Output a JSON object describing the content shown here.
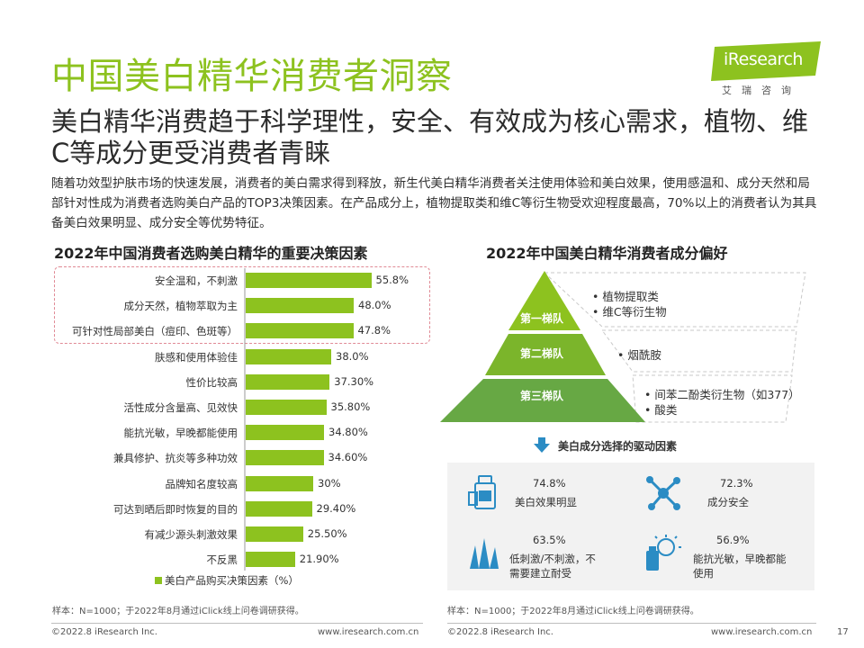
{
  "header": {
    "title": "中国美白精华消费者洞察",
    "subtitle": "美白精华消费趋于科学理性，安全、有效成为核心需求，植物、维C等成分更受消费者青睐",
    "intro": "随着功效型护肤市场的快速发展，消费者的美白需求得到释放，新生代美白精华消费者关注使用体验和美白效果，使用感温和、成分天然和局部针对性成为消费者选购美白产品的TOP3决策因素。在产品成分上，植物提取类和维C等衍生物受欢迎程度最高，70%以上的消费者认为其具备美白效果明显、成分安全等优势特征。",
    "logo_text": "iResearch",
    "logo_sub": "艾瑞咨询",
    "brand_color": "#8dc21f"
  },
  "left_panel": {
    "title": "2022年中国消费者选购美白精华的重要决策因素",
    "legend": "美白产品购买决策因素（%）",
    "note": "样本：N=1000；于2022年8月通过iClick线上问卷调研获得。"
  },
  "chart_data": [
    {
      "type": "bar",
      "orientation": "horizontal",
      "title": "2022年中国消费者选购美白精华的重要决策因素",
      "categories": [
        "安全温和，不刺激",
        "成分天然，植物萃取为主",
        "可针对性局部美白（痘印、色斑等）",
        "肤感和使用体验佳",
        "性价比较高",
        "活性成分含量高、见效快",
        "能抗光敏，早晚都能使用",
        "兼具修护、抗炎等多种功效",
        "品牌知名度较高",
        "可达到晒后即时恢复的目的",
        "有减少源头刺激效果",
        "不反黑"
      ],
      "values": [
        55.8,
        48.0,
        47.8,
        38.0,
        37.3,
        35.8,
        34.8,
        34.6,
        30,
        29.4,
        25.5,
        21.9
      ],
      "value_labels": [
        "55.8%",
        "48.0%",
        "47.8%",
        "38.0%",
        "37.30%",
        "35.80%",
        "34.80%",
        "34.60%",
        "30%",
        "29.40%",
        "25.50%",
        "21.90%"
      ],
      "series": [
        {
          "name": "美白产品购买决策因素（%）",
          "values": [
            55.8,
            48.0,
            47.8,
            38.0,
            37.3,
            35.8,
            34.8,
            34.6,
            30,
            29.4,
            25.5,
            21.9
          ]
        }
      ],
      "highlighted_top": 3,
      "xlim": [
        0,
        60
      ],
      "bar_color": "#8dc21f",
      "legend_position": "bottom"
    }
  ],
  "right_panel": {
    "title": "2022年中国美白精华消费者成分偏好",
    "tiers": [
      {
        "name": "第一梯队",
        "items": [
          "• 植物提取类",
          "• 维C等衍生物"
        ],
        "color": "#8dc21f"
      },
      {
        "name": "第二梯队",
        "items": [
          "• 烟酰胺"
        ],
        "color": "#7bb52b"
      },
      {
        "name": "第三梯队",
        "items": [
          "• 间苯二酚类衍生物（如377）",
          "• 酸类"
        ],
        "color": "#67a844"
      }
    ],
    "drivers_title": "美白成分选择的驱动因素",
    "drivers": [
      {
        "pct": "74.8%",
        "label": "美白效果明显",
        "icon": "serum-bottle-icon"
      },
      {
        "pct": "72.3%",
        "label": "成分安全",
        "icon": "molecule-icon"
      },
      {
        "pct": "63.5%",
        "label": "低刺激/不刺激，不需要建立耐受",
        "icon": "grass-icon"
      },
      {
        "pct": "56.9%",
        "label": "能抗光敏，早晚都能使用",
        "icon": "sun-bottle-icon"
      }
    ],
    "note": "样本：N=1000；于2022年8月通过iClick线上问卷调研获得。",
    "icon_color": "#2b8cc4"
  },
  "footer": {
    "left_copyright": "©2022.8 iResearch Inc.",
    "left_url": "www.iresearch.com.cn",
    "right_copyright": "©2022.8 iResearch Inc.",
    "right_url": "www.iresearch.com.cn",
    "page_number": "17"
  }
}
